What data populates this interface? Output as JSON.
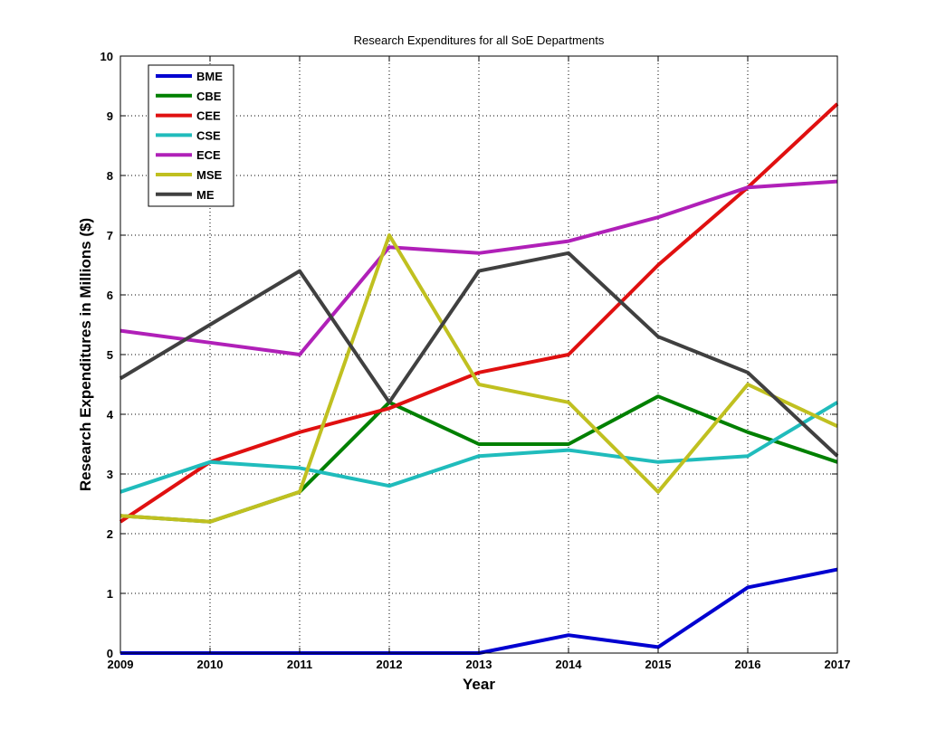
{
  "chart_data": {
    "type": "line",
    "title": "Research Expenditures for all SoE Departments",
    "xlabel": "Year",
    "ylabel": "Research Expenditures in Millions ($)",
    "x": [
      2009,
      2010,
      2011,
      2012,
      2013,
      2014,
      2015,
      2016,
      2017
    ],
    "xlim": [
      2009,
      2017
    ],
    "ylim": [
      0,
      10
    ],
    "yticks": [
      0,
      1,
      2,
      3,
      4,
      5,
      6,
      7,
      8,
      9,
      10
    ],
    "grid": true,
    "legend_position": "top-left",
    "series": [
      {
        "name": "BME",
        "color": "#0000d0",
        "values": [
          0,
          0,
          0,
          0,
          0,
          0.3,
          0.1,
          1.1,
          1.4
        ]
      },
      {
        "name": "CBE",
        "color": "#008000",
        "values": [
          2.3,
          2.2,
          2.7,
          4.2,
          3.5,
          3.5,
          4.3,
          3.7,
          3.2
        ]
      },
      {
        "name": "CEE",
        "color": "#e01010",
        "values": [
          2.2,
          3.2,
          3.7,
          4.1,
          4.7,
          5.0,
          6.5,
          7.8,
          9.2
        ]
      },
      {
        "name": "CSE",
        "color": "#20bcbc",
        "values": [
          2.7,
          3.2,
          3.1,
          2.8,
          3.3,
          3.4,
          3.2,
          3.3,
          4.2
        ]
      },
      {
        "name": "ECE",
        "color": "#b020b8",
        "values": [
          5.4,
          5.2,
          5.0,
          6.8,
          6.7,
          6.9,
          7.3,
          7.8,
          7.9
        ]
      },
      {
        "name": "MSE",
        "color": "#c0c020",
        "values": [
          2.3,
          2.2,
          2.7,
          7.0,
          4.5,
          4.2,
          2.7,
          4.5,
          3.8
        ]
      },
      {
        "name": "ME",
        "color": "#404040",
        "values": [
          4.6,
          5.5,
          6.4,
          4.2,
          6.4,
          6.7,
          5.3,
          4.7,
          3.3
        ]
      }
    ]
  }
}
